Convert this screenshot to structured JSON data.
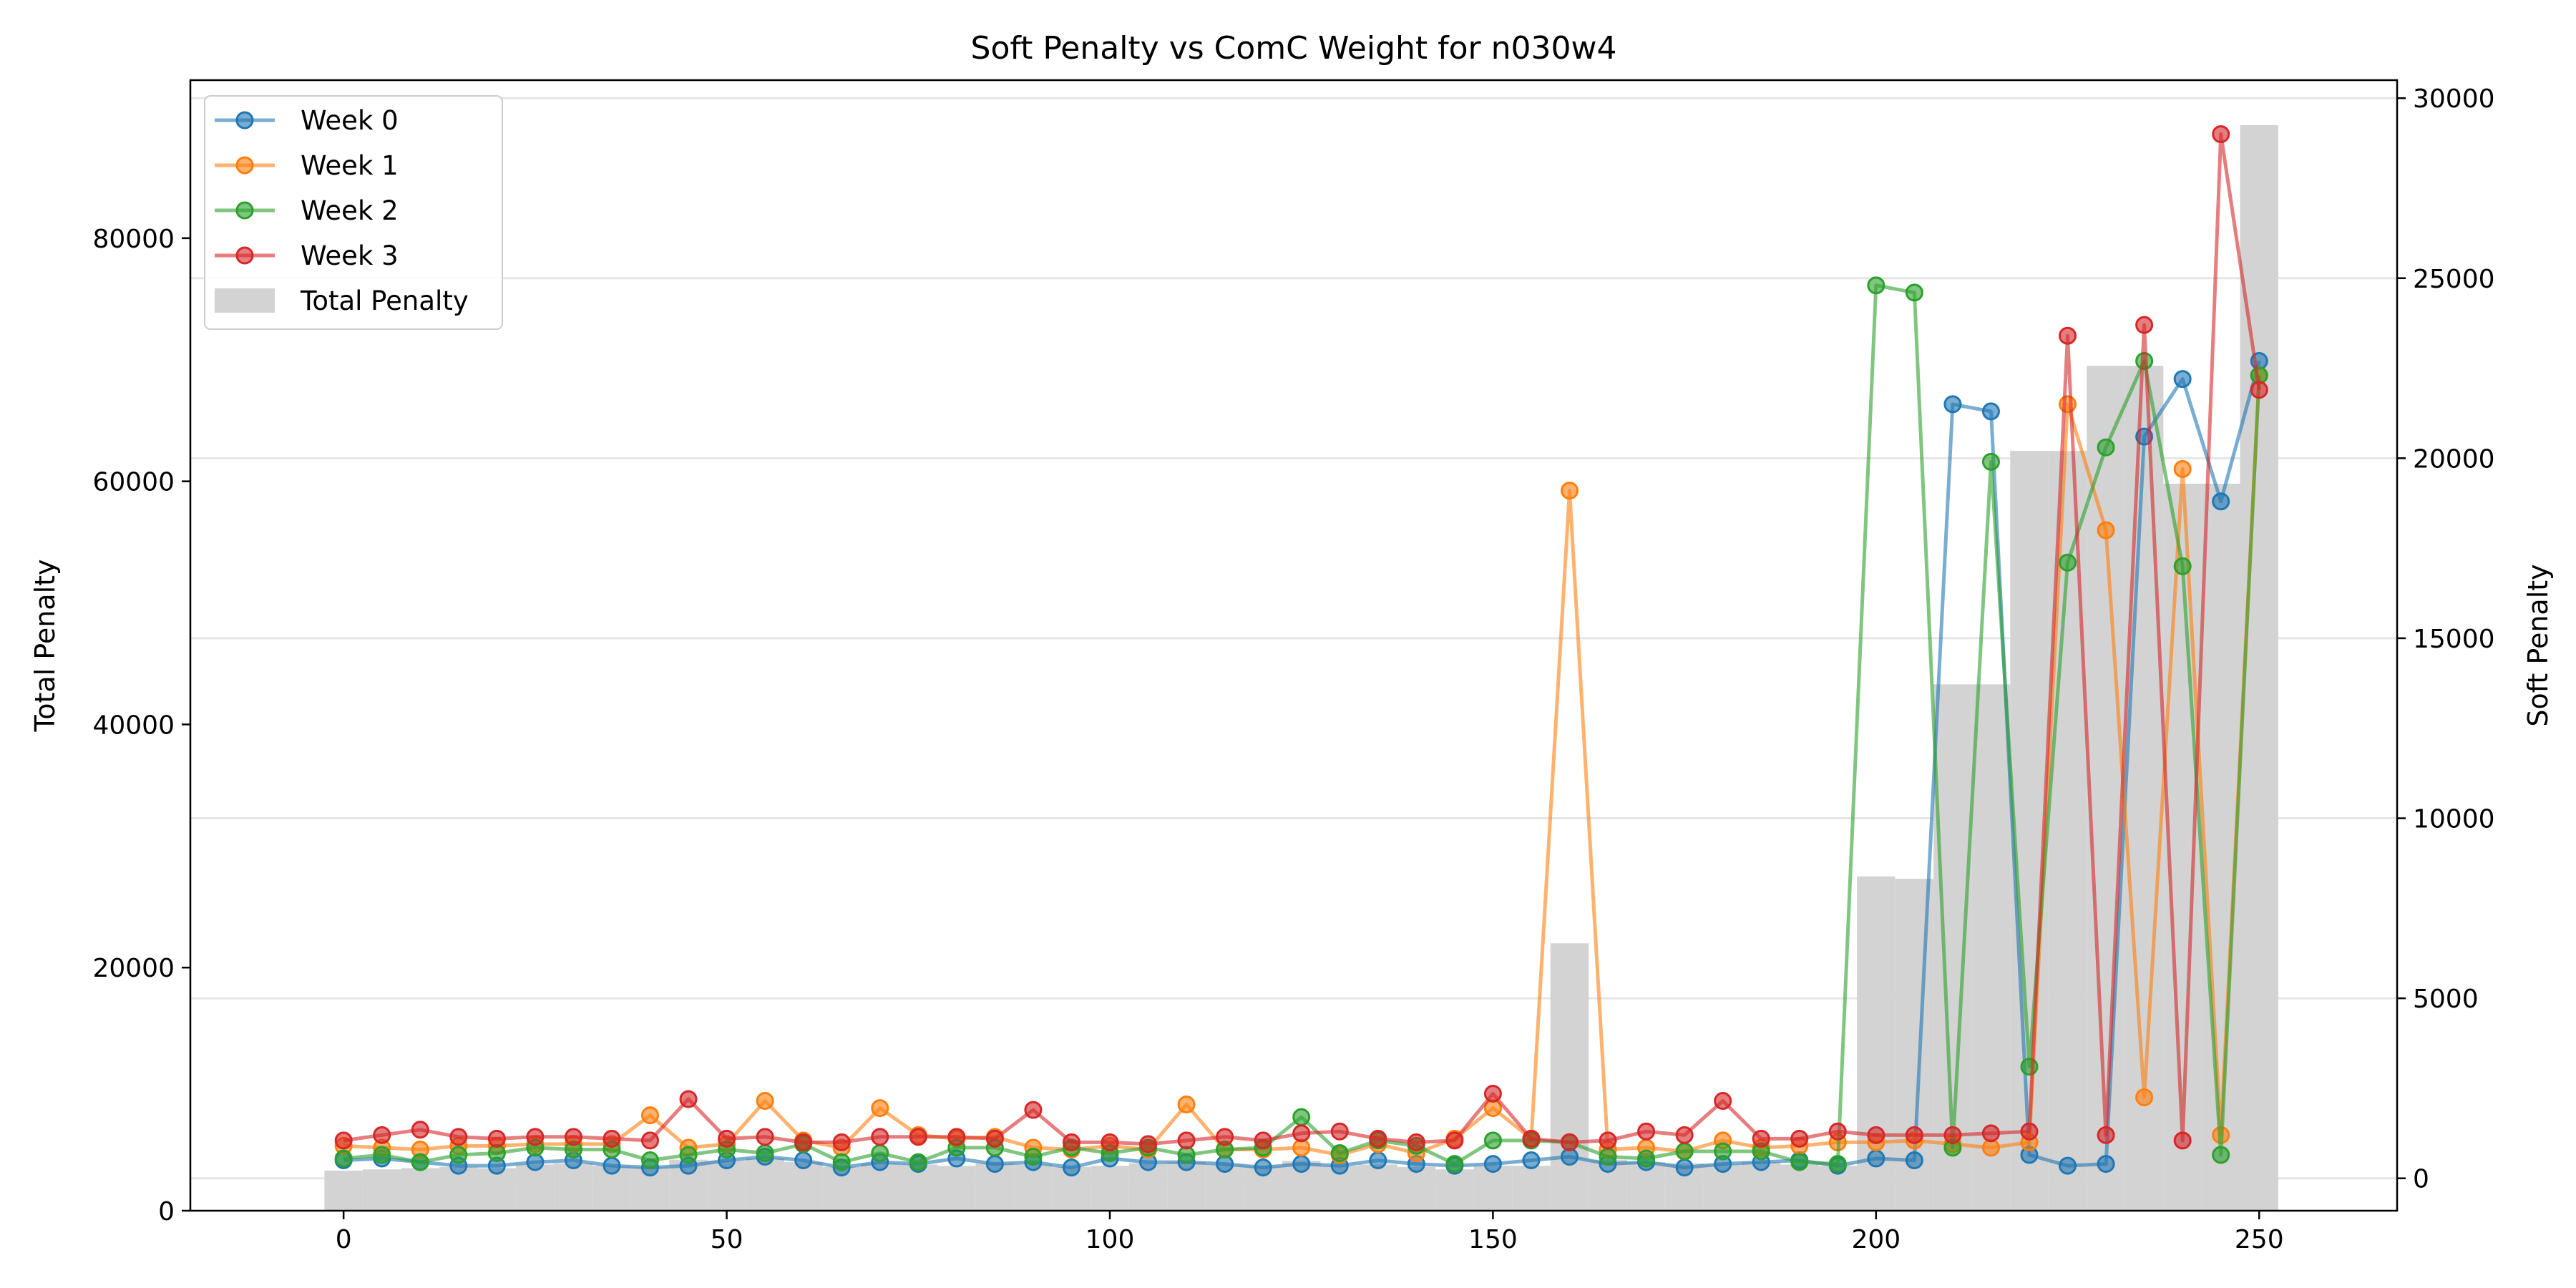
{
  "chart_data": {
    "type": "bar+line",
    "title": "Soft Penalty vs ComC Weight for n030w4",
    "xlabel": "",
    "ylabel_left": "Total Penalty",
    "ylabel_right": "Soft Penalty",
    "xlim": [
      -20,
      268
    ],
    "ylim_left": [
      0,
      93000
    ],
    "ylim_right": [
      -900,
      30500
    ],
    "x_ticks": [
      0,
      50,
      100,
      150,
      200,
      250
    ],
    "y_left_ticks": [
      0,
      20000,
      40000,
      60000,
      80000
    ],
    "y_right_ticks": [
      0,
      5000,
      10000,
      15000,
      20000,
      25000,
      30000
    ],
    "grid": "horizontal, right axis",
    "legend_position": "top-left",
    "x": [
      0,
      5,
      10,
      15,
      20,
      25,
      30,
      35,
      40,
      45,
      50,
      55,
      60,
      65,
      70,
      75,
      80,
      85,
      90,
      95,
      100,
      105,
      110,
      115,
      120,
      125,
      130,
      135,
      140,
      145,
      150,
      155,
      160,
      165,
      170,
      175,
      180,
      185,
      190,
      195,
      200,
      205,
      210,
      215,
      220,
      225,
      230,
      235,
      240,
      245,
      250
    ],
    "bars": {
      "name": "Total Penalty",
      "color": "#d3d3d3",
      "width": 5,
      "values": [
        3300,
        3400,
        3500,
        3600,
        3500,
        3800,
        3900,
        3700,
        3600,
        4200,
        4100,
        4300,
        4000,
        3600,
        3900,
        3800,
        3700,
        3900,
        3800,
        3600,
        3700,
        3900,
        4000,
        3800,
        3700,
        4100,
        3700,
        3800,
        3600,
        3400,
        3700,
        3700,
        22000,
        4200,
        4000,
        3900,
        3800,
        4000,
        3800,
        3700,
        27500,
        27300,
        43300,
        43300,
        62500,
        62500,
        69500,
        69500,
        59800,
        59800,
        89300
      ]
    },
    "series": [
      {
        "name": "Week 0",
        "color": "#1f77b4",
        "values": [
          500,
          550,
          450,
          350,
          350,
          450,
          500,
          350,
          300,
          350,
          500,
          600,
          500,
          300,
          450,
          400,
          550,
          400,
          450,
          300,
          550,
          450,
          450,
          400,
          300,
          400,
          350,
          500,
          400,
          350,
          400,
          500,
          600,
          400,
          450,
          300,
          400,
          450,
          500,
          350,
          550,
          500,
          21500,
          21300,
          650,
          350,
          400,
          20600,
          22200,
          18800,
          22700
        ]
      },
      {
        "name": "Week 1",
        "color": "#ff7f0e",
        "values": [
          900,
          850,
          800,
          900,
          900,
          950,
          950,
          950,
          1750,
          850,
          950,
          2150,
          1050,
          850,
          1950,
          1200,
          1100,
          1150,
          850,
          800,
          900,
          800,
          2050,
          800,
          800,
          850,
          650,
          950,
          700,
          1100,
          1950,
          1100,
          19100,
          800,
          850,
          750,
          1050,
          850,
          900,
          1000,
          1000,
          1050,
          950,
          850,
          1000,
          21500,
          18000,
          2250,
          19700,
          1200,
          22300
        ]
      },
      {
        "name": "Week 2",
        "color": "#2ca02c",
        "values": [
          550,
          650,
          450,
          650,
          700,
          850,
          800,
          800,
          500,
          650,
          800,
          700,
          950,
          450,
          700,
          450,
          850,
          850,
          600,
          850,
          700,
          850,
          650,
          800,
          850,
          1700,
          700,
          1050,
          900,
          400,
          1050,
          1050,
          1000,
          600,
          550,
          750,
          750,
          750,
          450,
          400,
          24800,
          24600,
          850,
          19900,
          3100,
          17100,
          20300,
          22700,
          17000,
          650,
          22300
        ]
      },
      {
        "name": "Week 3",
        "color": "#d62728",
        "values": [
          1050,
          1200,
          1350,
          1150,
          1100,
          1150,
          1150,
          1100,
          1050,
          2200,
          1100,
          1150,
          1000,
          1000,
          1150,
          1150,
          1150,
          1100,
          1900,
          1000,
          1000,
          950,
          1050,
          1150,
          1050,
          1250,
          1300,
          1100,
          1000,
          1050,
          2350,
          1100,
          1000,
          1050,
          1300,
          1200,
          2150,
          1100,
          1100,
          1300,
          1200,
          1200,
          1200,
          1250,
          1300,
          23400,
          1200,
          23700,
          1050,
          29000,
          21900
        ]
      }
    ]
  }
}
